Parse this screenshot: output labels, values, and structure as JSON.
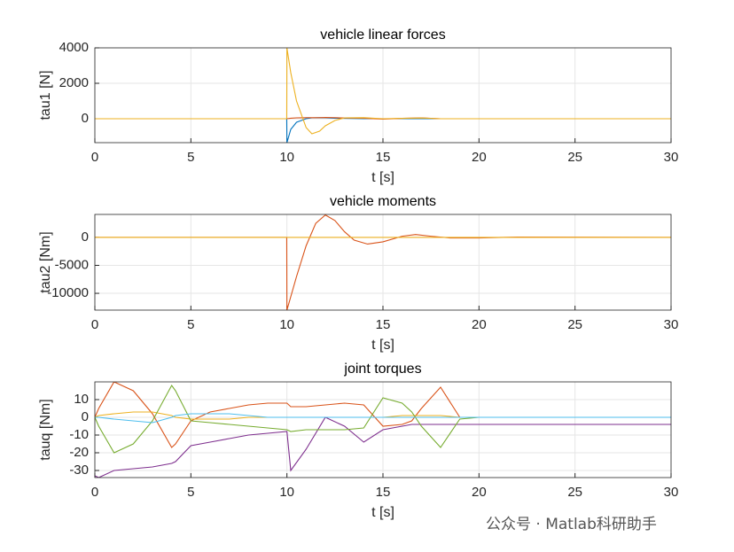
{
  "chart_data": [
    {
      "type": "line",
      "title": "vehicle linear forces",
      "xlabel": "t [s]",
      "ylabel": "tau1 [N]",
      "xlim": [
        0,
        30
      ],
      "xticks": [
        0,
        5,
        10,
        15,
        20,
        25,
        30
      ],
      "ylim": [
        -1350,
        4000
      ],
      "yticks": [
        0,
        2000,
        4000
      ],
      "grid": true,
      "x": [
        0,
        9.99,
        10,
        10.2,
        10.5,
        11,
        11.3,
        11.7,
        12,
        12.5,
        13,
        14,
        15,
        16,
        17,
        18,
        20,
        30
      ],
      "series": [
        {
          "color": "#0072BD",
          "values": [
            0,
            0,
            -1350,
            -600,
            -200,
            0,
            50,
            60,
            50,
            30,
            20,
            0,
            0,
            0,
            0,
            0,
            0,
            0
          ]
        },
        {
          "color": "#D95319",
          "values": [
            0,
            0,
            0,
            30,
            50,
            60,
            60,
            60,
            70,
            60,
            40,
            30,
            -20,
            20,
            50,
            0,
            0,
            0
          ]
        },
        {
          "color": "#EDB120",
          "values": [
            0,
            0,
            4000,
            2600,
            1000,
            -500,
            -850,
            -700,
            -400,
            -100,
            50,
            60,
            0,
            20,
            40,
            0,
            0,
            0
          ]
        }
      ]
    },
    {
      "type": "line",
      "title": "vehicle moments",
      "xlabel": "t [s]",
      "ylabel": "tau2 [Nm]",
      "xlim": [
        0,
        30
      ],
      "xticks": [
        0,
        5,
        10,
        15,
        20,
        25,
        30
      ],
      "ylim": [
        -13000,
        4100
      ],
      "yticks": [
        -10000,
        -5000,
        0
      ],
      "grid": true,
      "x": [
        0,
        9.99,
        10,
        10.5,
        11,
        11.5,
        12,
        12.5,
        13,
        13.5,
        14.2,
        15,
        16,
        16.7,
        17.5,
        18.5,
        20,
        22,
        30
      ],
      "series": [
        {
          "color": "#D95319",
          "values": [
            0,
            0,
            -13000,
            -7000,
            -1500,
            2500,
            4000,
            3000,
            1000,
            -500,
            -1200,
            -800,
            200,
            500,
            200,
            -100,
            -100,
            50,
            0
          ]
        },
        {
          "color": "#EDB120",
          "values": [
            0,
            0,
            0,
            0,
            0,
            0,
            0,
            0,
            0,
            0,
            0,
            0,
            0,
            0,
            0,
            0,
            0,
            0,
            0
          ]
        }
      ]
    },
    {
      "type": "line",
      "title": "joint torques",
      "xlabel": "t [s]",
      "ylabel": "tauq [Nm]",
      "xlim": [
        0,
        30
      ],
      "xticks": [
        0,
        5,
        10,
        15,
        20,
        25,
        30
      ],
      "ylim": [
        -34,
        20
      ],
      "yticks": [
        -30,
        -20,
        -10,
        0,
        10
      ],
      "grid": true,
      "x": [
        0,
        0.2,
        1,
        2,
        3,
        4,
        4.2,
        5,
        6,
        7,
        8,
        9,
        10,
        10.2,
        11,
        12,
        13,
        14,
        15,
        16,
        16.5,
        17,
        18,
        19,
        20,
        25,
        30
      ],
      "series": [
        {
          "color": "#D95319",
          "values": [
            0,
            5,
            20,
            15,
            2,
            -17,
            -15,
            -2,
            3,
            5,
            7,
            8,
            8,
            6,
            6,
            7,
            8,
            7,
            -5,
            -4,
            -2,
            5,
            17,
            0,
            0,
            0,
            0
          ]
        },
        {
          "color": "#EDB120",
          "values": [
            0,
            1,
            2,
            3,
            3,
            1,
            0,
            -1,
            -1,
            -1,
            0,
            0,
            0,
            0,
            0,
            0,
            0,
            0,
            0,
            1,
            1,
            1,
            1,
            0,
            0,
            0,
            0
          ]
        },
        {
          "color": "#7E2F8E",
          "values": [
            -33,
            -34,
            -30,
            -29,
            -28,
            -26,
            -25,
            -16,
            -14,
            -12,
            -10,
            -9,
            -8,
            -30,
            -18,
            0,
            -5,
            -14,
            -7,
            -5,
            -4,
            -4,
            -4,
            -4,
            -4,
            -4,
            -4
          ]
        },
        {
          "color": "#77AC30",
          "values": [
            0,
            -5,
            -20,
            -15,
            -2,
            18,
            15,
            -2,
            -3,
            -4,
            -5,
            -6,
            -7,
            -8,
            -7,
            -7,
            -7,
            -6,
            11,
            8,
            3,
            -5,
            -17,
            -1,
            0,
            0,
            0
          ]
        },
        {
          "color": "#4DBEEE",
          "values": [
            0,
            0,
            -1,
            -2,
            -3,
            0,
            1,
            2,
            2,
            2,
            1,
            0,
            0,
            0,
            0,
            0,
            0,
            0,
            0,
            0,
            0,
            0,
            0,
            0,
            0,
            0,
            0
          ]
        }
      ]
    }
  ],
  "watermark": "公众号 · Matlab科研助手"
}
